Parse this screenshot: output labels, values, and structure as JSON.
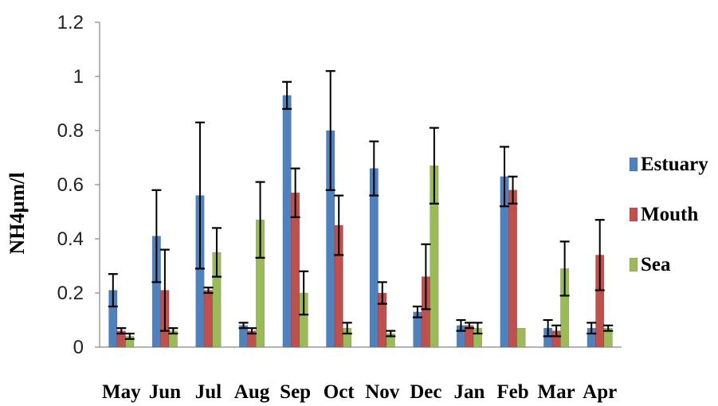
{
  "chart_data": {
    "type": "bar",
    "title": "",
    "xlabel": "",
    "ylabel": "NH4µm/l",
    "ylim": [
      0,
      1.2
    ],
    "yticks": [
      "0",
      "0.2",
      "0.4",
      "0.6",
      "0.8",
      "1",
      "1.2"
    ],
    "grid": false,
    "legend_position": "right",
    "categories": [
      "May",
      "Jun",
      "Jul",
      "Aug",
      "Sep",
      "Oct",
      "Nov",
      "Dec",
      "Jan",
      "Feb",
      "Mar",
      "Apr"
    ],
    "series": [
      {
        "name": "Estuary",
        "color": "#4F81BD",
        "values": [
          0.21,
          0.41,
          0.56,
          0.08,
          0.93,
          0.8,
          0.66,
          0.13,
          0.08,
          0.63,
          0.07,
          0.07
        ],
        "errors": [
          0.06,
          0.17,
          0.27,
          0.01,
          0.05,
          0.22,
          0.1,
          0.02,
          0.02,
          0.11,
          0.03,
          0.02
        ]
      },
      {
        "name": "Mouth",
        "color": "#C0504D",
        "values": [
          0.06,
          0.21,
          0.21,
          0.06,
          0.57,
          0.45,
          0.2,
          0.26,
          0.08,
          0.58,
          0.06,
          0.34
        ],
        "errors": [
          0.01,
          0.15,
          0.01,
          0.01,
          0.09,
          0.11,
          0.04,
          0.12,
          0.01,
          0.05,
          0.02,
          0.13
        ]
      },
      {
        "name": "Sea",
        "color": "#9BBB59",
        "values": [
          0.04,
          0.06,
          0.35,
          0.47,
          0.2,
          0.07,
          0.05,
          0.67,
          0.07,
          0.07,
          0.29,
          0.07
        ],
        "errors": [
          0.01,
          0.01,
          0.09,
          0.14,
          0.08,
          0.02,
          0.01,
          0.14,
          0.02,
          0.0,
          0.1,
          0.01
        ]
      }
    ]
  }
}
